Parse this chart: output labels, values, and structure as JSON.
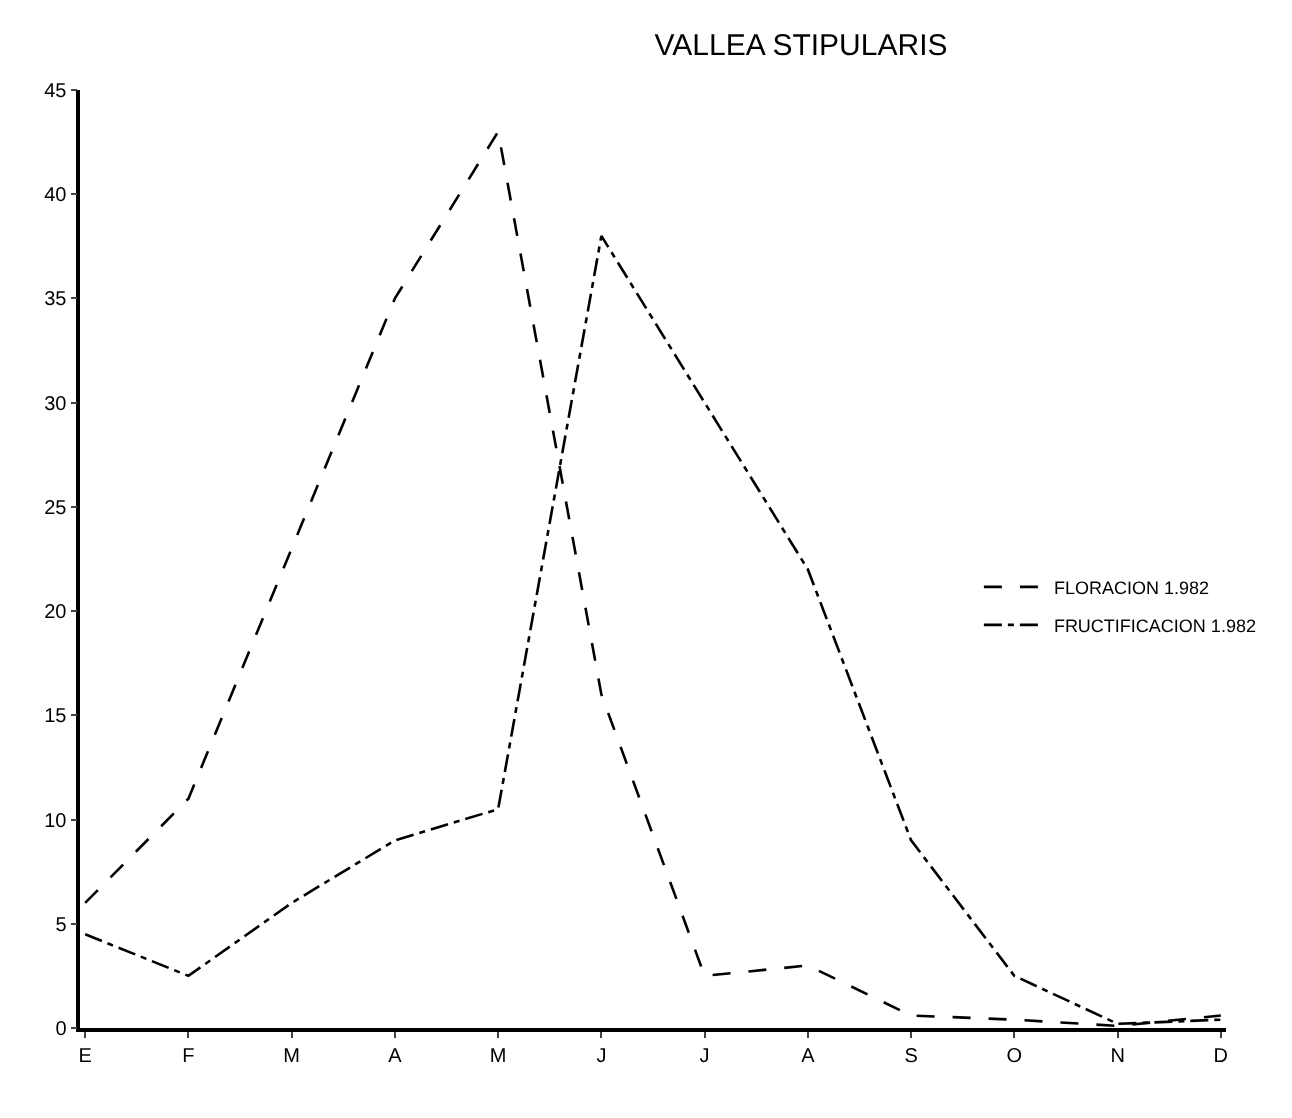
{
  "chart_data": {
    "type": "line",
    "title": "VALLEA STIPULARIS",
    "categories": [
      "E",
      "F",
      "M",
      "A",
      "M",
      "J",
      "J",
      "A",
      "S",
      "O",
      "N",
      "D"
    ],
    "series": [
      {
        "name": "FLORACION 1.982",
        "color": "#000000",
        "line_style": "dashed",
        "values": [
          6,
          11,
          23,
          35,
          43,
          16,
          2.5,
          3,
          0.6,
          0.4,
          0.1,
          0.6
        ]
      },
      {
        "name": "FRUCTIFICACION 1.982",
        "color": "#000000",
        "line_style": "dashdot",
        "values": [
          4.5,
          2.5,
          6,
          9,
          10.5,
          38,
          30,
          22,
          9,
          2.5,
          0.2,
          0.4
        ]
      }
    ],
    "ylim": [
      0,
      45
    ],
    "yticks": [
      0,
      5,
      10,
      15,
      20,
      25,
      30,
      35,
      40,
      45
    ],
    "legend": "right",
    "marker": "none"
  }
}
